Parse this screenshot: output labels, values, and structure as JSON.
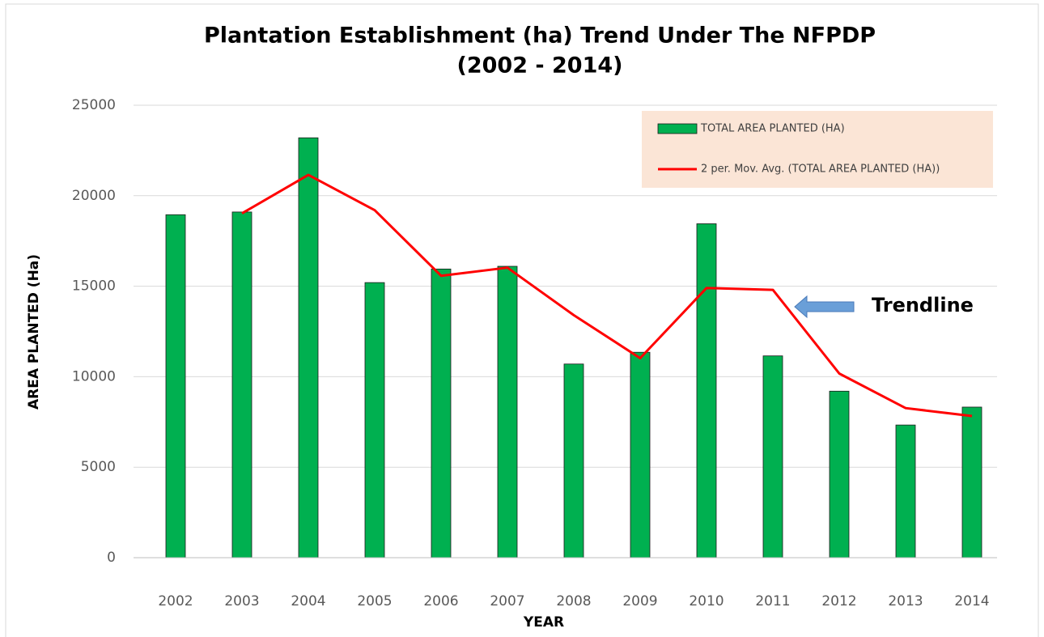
{
  "chart_data": {
    "type": "bar",
    "title_lines": [
      "Plantation Establishment (ha) Trend Under The NFPDP",
      "(2002 - 2014)"
    ],
    "x_label": "YEAR",
    "y_label": "AREA PLANTED (Ha)",
    "categories": [
      "2002",
      "2003",
      "2004",
      "2005",
      "2006",
      "2007",
      "2008",
      "2009",
      "2010",
      "2011",
      "2012",
      "2013",
      "2014"
    ],
    "series": [
      {
        "name": "TOTAL AREA PLANTED (HA)",
        "type": "bar",
        "color": "#00b050",
        "values": [
          18950,
          19100,
          23200,
          15200,
          15950,
          16100,
          10700,
          11350,
          18450,
          11150,
          9200,
          7330,
          8320
        ]
      },
      {
        "name": "2 per. Mov. Avg. (TOTAL AREA PLANTED (HA))",
        "type": "line",
        "color": "#ff0000",
        "values": [
          null,
          19025,
          21150,
          19200,
          15575,
          16025,
          13400,
          11025,
          14900,
          14800,
          10175,
          8265,
          7825
        ]
      }
    ],
    "ylim": [
      0,
      25000
    ],
    "yticks": [
      0,
      5000,
      10000,
      15000,
      20000,
      25000
    ],
    "grid": true,
    "legend": "top-right",
    "annotation": "Trendline"
  }
}
